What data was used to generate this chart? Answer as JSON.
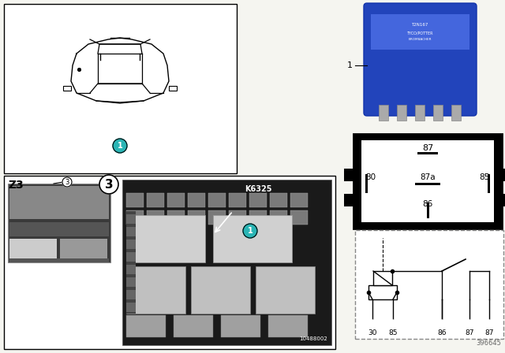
{
  "bg_color": "#f5f5f0",
  "teal_color": "#2ab5b5",
  "black": "#000000",
  "white": "#ffffff",
  "dark_gray": "#222222",
  "med_gray": "#666666",
  "light_gray": "#bbbbbb",
  "blue_relay": "#3355cc",
  "ref_number": "396645",
  "k6325": "K6325",
  "z3": "Z3",
  "img_ref": "10488002",
  "pin_labels_box": [
    "87",
    "30",
    "87a",
    "85",
    "86"
  ],
  "schematic_labels": [
    "30",
    "85",
    "86",
    "87",
    "87"
  ]
}
